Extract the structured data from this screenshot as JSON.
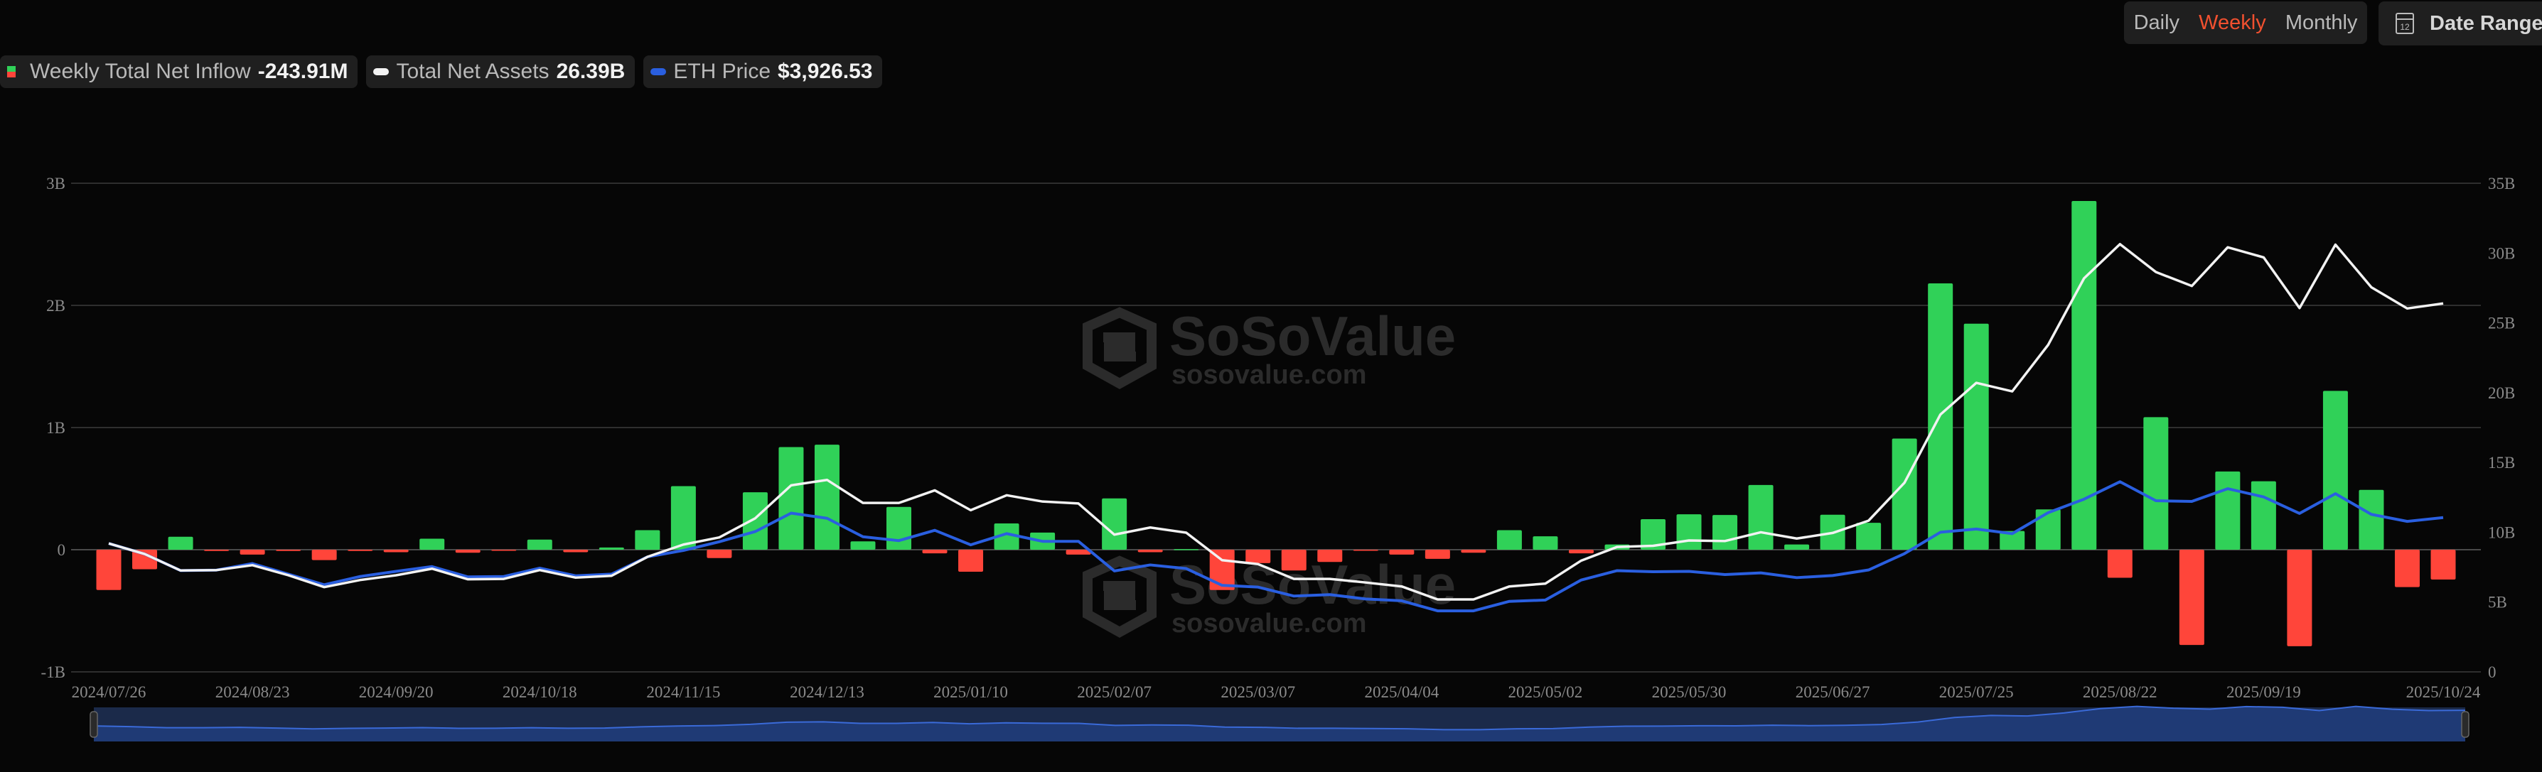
{
  "legend": {
    "inflow_label": "Weekly Total Net Inflow",
    "inflow_value": "-243.91M",
    "assets_label": "Total Net Assets",
    "assets_value": "26.39B",
    "price_label": "ETH Price",
    "price_value": "$3,926.53"
  },
  "controls": {
    "daily": "Daily",
    "weekly": "Weekly",
    "monthly": "Monthly",
    "active": "Weekly",
    "date_range": "Date Range",
    "calendar_day": "12"
  },
  "watermark": {
    "brand": "SoSoValue",
    "url": "sosovalue.com"
  },
  "colors": {
    "inflow_positive": "#30d158",
    "inflow_negative": "#ff453a",
    "net_assets": "#f2f2f2",
    "eth_price": "#2a5fe0",
    "active_tab": "#f1502f",
    "background": "#060606"
  },
  "chart_data": {
    "type": "bar+line",
    "x": [
      "2024/07/26",
      "2024/08/02",
      "2024/08/09",
      "2024/08/16",
      "2024/08/23",
      "2024/08/30",
      "2024/09/06",
      "2024/09/13",
      "2024/09/20",
      "2024/09/27",
      "2024/10/04",
      "2024/10/11",
      "2024/10/18",
      "2024/10/25",
      "2024/11/01",
      "2024/11/08",
      "2024/11/15",
      "2024/11/22",
      "2024/11/29",
      "2024/12/06",
      "2024/12/13",
      "2024/12/20",
      "2024/12/27",
      "2025/01/03",
      "2025/01/10",
      "2025/01/17",
      "2025/01/24",
      "2025/01/31",
      "2025/02/07",
      "2025/02/14",
      "2025/02/21",
      "2025/02/28",
      "2025/03/07",
      "2025/03/14",
      "2025/03/21",
      "2025/03/28",
      "2025/04/04",
      "2025/04/11",
      "2025/04/18",
      "2025/04/25",
      "2025/05/02",
      "2025/05/09",
      "2025/05/16",
      "2025/05/23",
      "2025/05/30",
      "2025/06/06",
      "2025/06/13",
      "2025/06/20",
      "2025/06/27",
      "2025/07/04",
      "2025/07/11",
      "2025/07/18",
      "2025/07/25",
      "2025/08/01",
      "2025/08/08",
      "2025/08/15",
      "2025/08/22",
      "2025/08/29",
      "2025/09/05",
      "2025/09/12",
      "2025/09/19",
      "2025/09/26",
      "2025/10/03",
      "2025/10/10",
      "2025/10/17",
      "2025/10/24"
    ],
    "x_tick_labels": [
      "2024/07/26",
      "2024/08/23",
      "2024/09/20",
      "2024/10/18",
      "2024/11/15",
      "2024/12/13",
      "2025/01/10",
      "2025/02/07",
      "2025/03/07",
      "2025/04/04",
      "2025/05/02",
      "2025/05/30",
      "2025/06/27",
      "2025/07/25",
      "2025/08/22",
      "2025/09/19",
      "2025/10/24"
    ],
    "series": [
      {
        "name": "Weekly Total Net Inflow",
        "type": "bar",
        "axis": "left",
        "unit": "B",
        "values": [
          -0.33,
          -0.16,
          0.106,
          -0.01,
          -0.04,
          -0.01,
          -0.085,
          -0.01,
          -0.02,
          0.09,
          -0.025,
          -0.003,
          0.083,
          -0.02,
          0.018,
          0.16,
          0.52,
          -0.068,
          0.47,
          0.84,
          0.86,
          0.068,
          0.35,
          -0.03,
          -0.18,
          0.215,
          0.14,
          -0.04,
          0.42,
          -0.02,
          0.005,
          -0.33,
          -0.11,
          -0.17,
          -0.1,
          -0.005,
          -0.04,
          -0.075,
          -0.025,
          0.16,
          0.11,
          -0.03,
          0.043,
          0.25,
          0.29,
          0.284,
          0.53,
          0.043,
          0.286,
          0.22,
          0.91,
          2.18,
          1.85,
          0.153,
          0.33,
          2.855,
          -0.23,
          1.085,
          -0.78,
          0.64,
          0.56,
          -0.79,
          1.3,
          0.49,
          -0.306,
          -0.2439
        ]
      },
      {
        "name": "Total Net Assets",
        "type": "line",
        "axis": "right",
        "unit": "B",
        "values": [
          9.2,
          8.44,
          7.26,
          7.29,
          7.64,
          6.92,
          6.07,
          6.58,
          6.92,
          7.39,
          6.63,
          6.66,
          7.29,
          6.75,
          6.88,
          8.24,
          9.12,
          9.63,
          11.0,
          13.36,
          13.75,
          12.1,
          12.1,
          13.0,
          11.58,
          12.65,
          12.2,
          12.06,
          9.83,
          10.34,
          9.97,
          8.0,
          7.72,
          6.66,
          6.66,
          6.4,
          6.12,
          5.19,
          5.19,
          6.12,
          6.32,
          7.97,
          8.95,
          9.03,
          9.41,
          9.37,
          10.0,
          9.55,
          9.95,
          10.83,
          13.55,
          18.43,
          20.7,
          20.09,
          23.42,
          28.19,
          30.64,
          28.64,
          27.64,
          30.41,
          29.69,
          26.06,
          30.6,
          27.55,
          26.03,
          26.39
        ]
      },
      {
        "name": "ETH Price",
        "type": "line",
        "axis": "hidden",
        "unit": "USD",
        "values": [
          3275,
          3008,
          2592,
          2603,
          2768,
          2501,
          2233,
          2441,
          2571,
          2691,
          2431,
          2441,
          2652,
          2459,
          2501,
          2937,
          3099,
          3318,
          3574,
          4039,
          3909,
          3444,
          3346,
          3606,
          3240,
          3522,
          3328,
          3328,
          2582,
          2733,
          2642,
          2219,
          2174,
          1948,
          1984,
          1874,
          1829,
          1575,
          1575,
          1815,
          1847,
          2353,
          2589,
          2561,
          2571,
          2490,
          2533,
          2413,
          2466,
          2606,
          3018,
          3557,
          3638,
          3522,
          4050,
          4391,
          4831,
          4352,
          4335,
          4655,
          4448,
          4032,
          4529,
          4008,
          3831,
          3926.53
        ]
      }
    ],
    "left_axis": {
      "ticks": [
        "3B",
        "2B",
        "1B",
        "0",
        "-1B"
      ],
      "values": [
        3,
        2,
        1,
        0,
        -1
      ],
      "range": [
        -1,
        3
      ]
    },
    "right_axis": {
      "ticks": [
        "35B",
        "30B",
        "25B",
        "20B",
        "15B",
        "10B",
        "5B",
        "0"
      ],
      "values": [
        35,
        30,
        25,
        20,
        15,
        10,
        5,
        0
      ],
      "range": [
        0,
        35
      ]
    },
    "grid": true,
    "legend_position": "top-left"
  }
}
